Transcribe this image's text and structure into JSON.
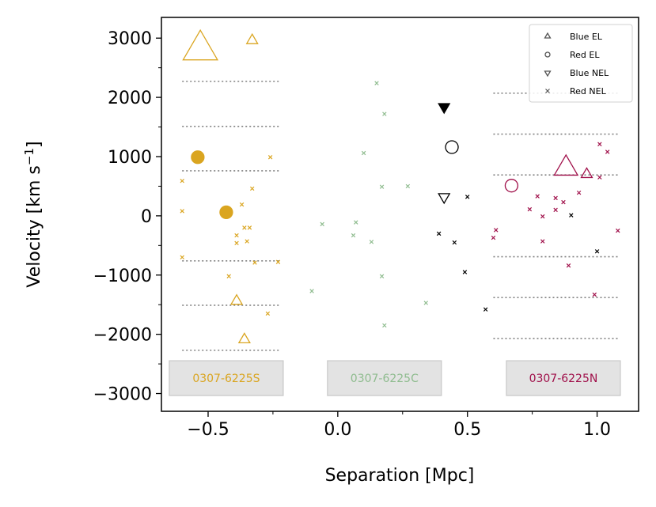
{
  "chart_data": {
    "type": "scatter",
    "xlabel": "Separation [Mpc]",
    "ylabel": "Velocity [km s",
    "ylabel_sup": "−1",
    "ylabel_close": "]",
    "xlim": [
      -0.68,
      1.16
    ],
    "ylim": [
      -3300,
      3350
    ],
    "xticks": [
      -0.5,
      0.0,
      0.5,
      1.0
    ],
    "xtick_labels": [
      "−0.5",
      "0.0",
      "0.5",
      "1.0"
    ],
    "yticks": [
      -3000,
      -2000,
      -1000,
      0,
      1000,
      2000,
      3000
    ],
    "ytick_labels": [
      "−3000",
      "−2000",
      "−1000",
      "0",
      "1000",
      "2000",
      "3000"
    ],
    "grid": false,
    "legend": {
      "placement": "top-right",
      "entries": [
        {
          "label": "Blue EL",
          "marker": "triangle-up"
        },
        {
          "label": "Red EL",
          "marker": "circle"
        },
        {
          "label": "Blue NEL",
          "marker": "triangle-down"
        },
        {
          "label": "Red NEL",
          "marker": "x"
        }
      ]
    },
    "clusters": [
      {
        "name": "0307-6225S",
        "color": "#DAA520",
        "sigma_lines": {
          "x_range": [
            -0.6,
            -0.22
          ],
          "values": [
            2270,
            1510,
            760,
            -760,
            -1510,
            -2270
          ]
        },
        "label_box_center": [
          -0.43,
          -2740
        ],
        "points": [
          {
            "x": -0.53,
            "y": 2800,
            "marker": "triangle-up",
            "size": 3,
            "filled": false
          },
          {
            "x": -0.33,
            "y": 2960,
            "marker": "triangle-up",
            "size": 1,
            "filled": false
          },
          {
            "x": -0.54,
            "y": 990,
            "marker": "circle",
            "size": 1,
            "filled": true
          },
          {
            "x": -0.43,
            "y": 60,
            "marker": "circle",
            "size": 1,
            "filled": true
          },
          {
            "x": -0.39,
            "y": -1440,
            "marker": "triangle-up",
            "size": 1,
            "filled": false
          },
          {
            "x": -0.36,
            "y": -2090,
            "marker": "triangle-up",
            "size": 1,
            "filled": false
          },
          {
            "x": -0.6,
            "y": 590,
            "marker": "x"
          },
          {
            "x": -0.6,
            "y": 80,
            "marker": "x"
          },
          {
            "x": -0.6,
            "y": -700,
            "marker": "x"
          },
          {
            "x": -0.26,
            "y": 990,
            "marker": "x"
          },
          {
            "x": -0.33,
            "y": 460,
            "marker": "x"
          },
          {
            "x": -0.37,
            "y": 190,
            "marker": "x"
          },
          {
            "x": -0.36,
            "y": -200,
            "marker": "x"
          },
          {
            "x": -0.34,
            "y": -200,
            "marker": "x"
          },
          {
            "x": -0.39,
            "y": -330,
            "marker": "x"
          },
          {
            "x": -0.39,
            "y": -460,
            "marker": "x"
          },
          {
            "x": -0.35,
            "y": -430,
            "marker": "x"
          },
          {
            "x": -0.32,
            "y": -790,
            "marker": "x"
          },
          {
            "x": -0.23,
            "y": -780,
            "marker": "x"
          },
          {
            "x": -0.42,
            "y": -1020,
            "marker": "x"
          },
          {
            "x": -0.27,
            "y": -1650,
            "marker": "x"
          }
        ]
      },
      {
        "name": "0307-6225C",
        "color": "#8FBC8F",
        "sigma_lines": null,
        "label_box_center": [
          0.18,
          -2740
        ],
        "points": [
          {
            "x": 0.15,
            "y": 2240,
            "marker": "x"
          },
          {
            "x": 0.18,
            "y": 1720,
            "marker": "x"
          },
          {
            "x": 0.1,
            "y": 1060,
            "marker": "x"
          },
          {
            "x": 0.17,
            "y": 490,
            "marker": "x"
          },
          {
            "x": 0.27,
            "y": 500,
            "marker": "x"
          },
          {
            "x": 0.07,
            "y": -110,
            "marker": "x"
          },
          {
            "x": -0.06,
            "y": -140,
            "marker": "x"
          },
          {
            "x": 0.06,
            "y": -330,
            "marker": "x"
          },
          {
            "x": 0.13,
            "y": -440,
            "marker": "x"
          },
          {
            "x": 0.17,
            "y": -1020,
            "marker": "x"
          },
          {
            "x": -0.1,
            "y": -1270,
            "marker": "x"
          },
          {
            "x": 0.34,
            "y": -1470,
            "marker": "x"
          },
          {
            "x": 0.18,
            "y": -1850,
            "marker": "x"
          }
        ]
      },
      {
        "name": "black",
        "color": "#000000",
        "sigma_lines": null,
        "label_box_center": null,
        "points": [
          {
            "x": 0.41,
            "y": 1840,
            "marker": "triangle-down",
            "size": 1,
            "filled": true
          },
          {
            "x": 0.44,
            "y": 1160,
            "marker": "circle",
            "size": 1,
            "filled": false
          },
          {
            "x": 0.41,
            "y": 320,
            "marker": "triangle-down",
            "size": 1,
            "filled": false
          },
          {
            "x": 0.5,
            "y": 320,
            "marker": "x"
          },
          {
            "x": 0.39,
            "y": -300,
            "marker": "x"
          },
          {
            "x": 0.45,
            "y": -450,
            "marker": "x"
          },
          {
            "x": 0.49,
            "y": -950,
            "marker": "x"
          },
          {
            "x": 0.57,
            "y": -1580,
            "marker": "x"
          },
          {
            "x": 0.9,
            "y": 10,
            "marker": "x"
          },
          {
            "x": 1.0,
            "y": -600,
            "marker": "x"
          }
        ]
      },
      {
        "name": "0307-6225N",
        "color": "#A0104A",
        "sigma_lines": {
          "x_range": [
            0.6,
            1.08
          ],
          "values": [
            2070,
            1380,
            690,
            -690,
            -1380,
            -2070
          ]
        },
        "label_box_center": [
          0.87,
          -2740
        ],
        "points": [
          {
            "x": 0.88,
            "y": 800,
            "marker": "triangle-up",
            "size": 2,
            "filled": false
          },
          {
            "x": 0.96,
            "y": 700,
            "marker": "triangle-up",
            "size": 1,
            "filled": false
          },
          {
            "x": 0.67,
            "y": 510,
            "marker": "circle",
            "size": 1,
            "filled": false
          },
          {
            "x": 1.01,
            "y": 1210,
            "marker": "x"
          },
          {
            "x": 1.04,
            "y": 1080,
            "marker": "x"
          },
          {
            "x": 1.01,
            "y": 650,
            "marker": "x"
          },
          {
            "x": 0.93,
            "y": 390,
            "marker": "x"
          },
          {
            "x": 0.84,
            "y": 300,
            "marker": "x"
          },
          {
            "x": 0.87,
            "y": 230,
            "marker": "x"
          },
          {
            "x": 0.77,
            "y": 330,
            "marker": "x"
          },
          {
            "x": 0.74,
            "y": 110,
            "marker": "x"
          },
          {
            "x": 0.84,
            "y": 100,
            "marker": "x"
          },
          {
            "x": 0.79,
            "y": -10,
            "marker": "x"
          },
          {
            "x": 0.61,
            "y": -240,
            "marker": "x"
          },
          {
            "x": 0.6,
            "y": -370,
            "marker": "x"
          },
          {
            "x": 0.79,
            "y": -430,
            "marker": "x"
          },
          {
            "x": 1.08,
            "y": -250,
            "marker": "x"
          },
          {
            "x": 0.89,
            "y": -840,
            "marker": "x"
          },
          {
            "x": 0.99,
            "y": -1330,
            "marker": "x"
          }
        ]
      }
    ]
  }
}
